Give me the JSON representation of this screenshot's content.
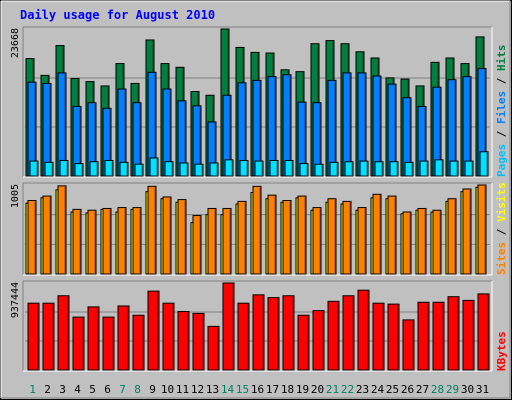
{
  "chart_data": [
    {
      "type": "bar",
      "title": "Daily usage for August 2010",
      "max_label": "23668",
      "ylim": [
        0,
        23668
      ],
      "categories": [
        "1",
        "2",
        "3",
        "4",
        "5",
        "6",
        "7",
        "8",
        "9",
        "10",
        "11",
        "12",
        "13",
        "14",
        "15",
        "16",
        "17",
        "18",
        "19",
        "20",
        "21",
        "22",
        "23",
        "24",
        "25",
        "26",
        "27",
        "28",
        "29",
        "30",
        "31"
      ],
      "weekend_days": [
        "1",
        "7",
        "8",
        "14",
        "15",
        "21",
        "22",
        "28",
        "29"
      ],
      "colors": {
        "Hits": "#008040",
        "Files": "#0080ff",
        "Pages": "#00e0ff"
      },
      "side_label": [
        "Pages",
        " / ",
        "Files",
        " / ",
        "Hits"
      ],
      "series": [
        {
          "name": "Hits",
          "values": [
            18900,
            16200,
            21000,
            15700,
            15200,
            14500,
            18100,
            14900,
            21900,
            18100,
            17500,
            13600,
            13000,
            23668,
            20700,
            19900,
            19800,
            17100,
            16800,
            21300,
            21800,
            21300,
            20000,
            19000,
            15800,
            15600,
            14500,
            18300,
            19000,
            18100,
            22400
          ]
        },
        {
          "name": "Files",
          "values": [
            15100,
            14900,
            16600,
            11200,
            11800,
            10900,
            14000,
            11800,
            16700,
            14000,
            12100,
            11300,
            8700,
            13000,
            15000,
            15400,
            16000,
            16300,
            11900,
            11800,
            15400,
            16600,
            16600,
            16100,
            14800,
            12600,
            11200,
            14300,
            15500,
            16000,
            17300
          ]
        },
        {
          "name": "Pages",
          "values": [
            2400,
            2200,
            2500,
            2000,
            2300,
            2500,
            2200,
            1900,
            2900,
            2300,
            2100,
            1900,
            2100,
            2600,
            2500,
            2400,
            2500,
            2500,
            2000,
            1900,
            2200,
            2300,
            2400,
            2300,
            2300,
            2200,
            2400,
            2600,
            2400,
            2400,
            3900
          ]
        }
      ]
    },
    {
      "type": "bar",
      "max_label": "1005",
      "ylim": [
        0,
        1005
      ],
      "colors": {
        "Visits": "#ffff00",
        "Sites": "#ff8000"
      },
      "side_label": [
        "Sites",
        " / ",
        "Visits"
      ],
      "series": [
        {
          "name": "Visits",
          "values": [
            800,
            860,
            950,
            700,
            690,
            730,
            700,
            730,
            930,
            850,
            810,
            580,
            670,
            670,
            790,
            920,
            850,
            810,
            860,
            720,
            810,
            790,
            720,
            860,
            850,
            680,
            720,
            700,
            820,
            930,
            980
          ]
        },
        {
          "name": "Sites",
          "values": [
            830,
            880,
            995,
            730,
            720,
            740,
            750,
            750,
            990,
            870,
            840,
            660,
            740,
            740,
            820,
            990,
            890,
            830,
            880,
            750,
            850,
            820,
            750,
            900,
            880,
            700,
            740,
            720,
            850,
            960,
            1005
          ]
        }
      ]
    },
    {
      "type": "bar",
      "max_label": "937444",
      "ylim": [
        0,
        937444
      ],
      "colors": {
        "KBytes": "#ff0000"
      },
      "side_label": [
        "KBytes"
      ],
      "series": [
        {
          "name": "KBytes",
          "values": [
            720000,
            720000,
            800000,
            570000,
            680000,
            570000,
            690000,
            590000,
            850000,
            720000,
            630000,
            610000,
            470000,
            937444,
            720000,
            810000,
            780000,
            800000,
            590000,
            640000,
            740000,
            800000,
            860000,
            720000,
            710000,
            540000,
            730000,
            730000,
            790000,
            750000,
            820000
          ]
        }
      ]
    }
  ]
}
